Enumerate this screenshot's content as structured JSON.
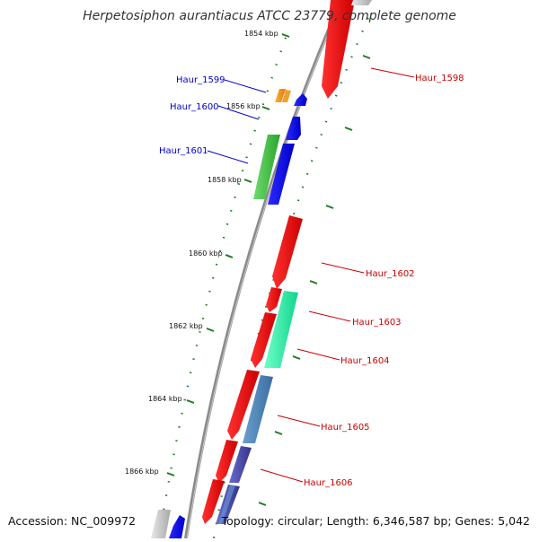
{
  "title": "Herpetosiphon aurantiacus ATCC 23779, complete genome",
  "footer": {
    "accession": "Accession: NC_009972",
    "summary": "Topology: circular; Length: 6,346,587 bp; Genes: 5,042"
  },
  "colors": {
    "axis": "#8a8a8a",
    "tick": "#1f7a1f",
    "forward_label": "#0000cc",
    "reverse_label": "#cc0000"
  },
  "ticks": [
    "1854 kbp",
    "1856 kbp",
    "1858 kbp",
    "1860 kbp",
    "1862 kbp",
    "1864 kbp",
    "1866 kbp"
  ],
  "gene_labels": [
    {
      "name": "Haur_1598",
      "strand": "reverse"
    },
    {
      "name": "Haur_1599",
      "strand": "forward"
    },
    {
      "name": "Haur_1600",
      "strand": "forward"
    },
    {
      "name": "Haur_1601",
      "strand": "forward"
    },
    {
      "name": "Haur_1602",
      "strand": "reverse"
    },
    {
      "name": "Haur_1603",
      "strand": "reverse"
    },
    {
      "name": "Haur_1604",
      "strand": "reverse"
    },
    {
      "name": "Haur_1605",
      "strand": "reverse"
    },
    {
      "name": "Haur_1606",
      "strand": "reverse"
    }
  ]
}
